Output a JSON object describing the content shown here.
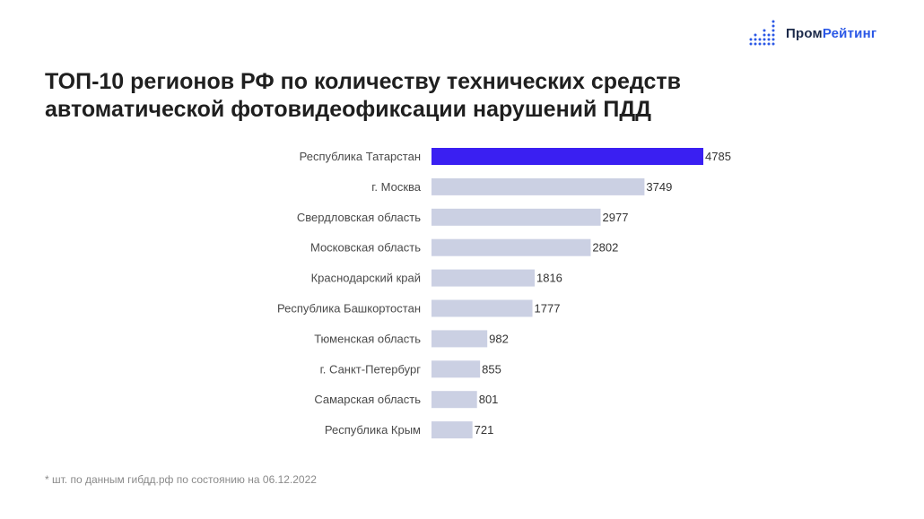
{
  "logo": {
    "part1": "Пром",
    "part2": "Рейтинг",
    "accent_color": "#2b58e6",
    "dark_color": "#1c2a4a"
  },
  "title_line1": "ТОП-10 регионов РФ по количеству технических средств",
  "title_line2": "автоматической фотовидеофиксации нарушений ПДД",
  "footnote": "* шт. по данным гибдд.рф по состоянию на 06.12.2022",
  "chart_data": {
    "type": "bar",
    "orientation": "horizontal",
    "title": "ТОП-10 регионов РФ по количеству технических средств автоматической фотовидеофиксации нарушений ПДД",
    "categories": [
      "Республика Татарстан",
      "г. Москва",
      "Свердловская область",
      "Московская область",
      "Краснодарский край",
      "Республика Башкортостан",
      "Тюменская область",
      "г. Санкт-Петербург",
      "Самарская область",
      "Республика Крым"
    ],
    "values": [
      4785,
      3749,
      2977,
      2802,
      1816,
      1777,
      982,
      855,
      801,
      721
    ],
    "xlim": [
      0,
      4785
    ],
    "highlight_index": 0,
    "highlight_color": "#3a1ff2",
    "bar_color": "#cbd0e3",
    "grid": false,
    "legend": "none"
  }
}
